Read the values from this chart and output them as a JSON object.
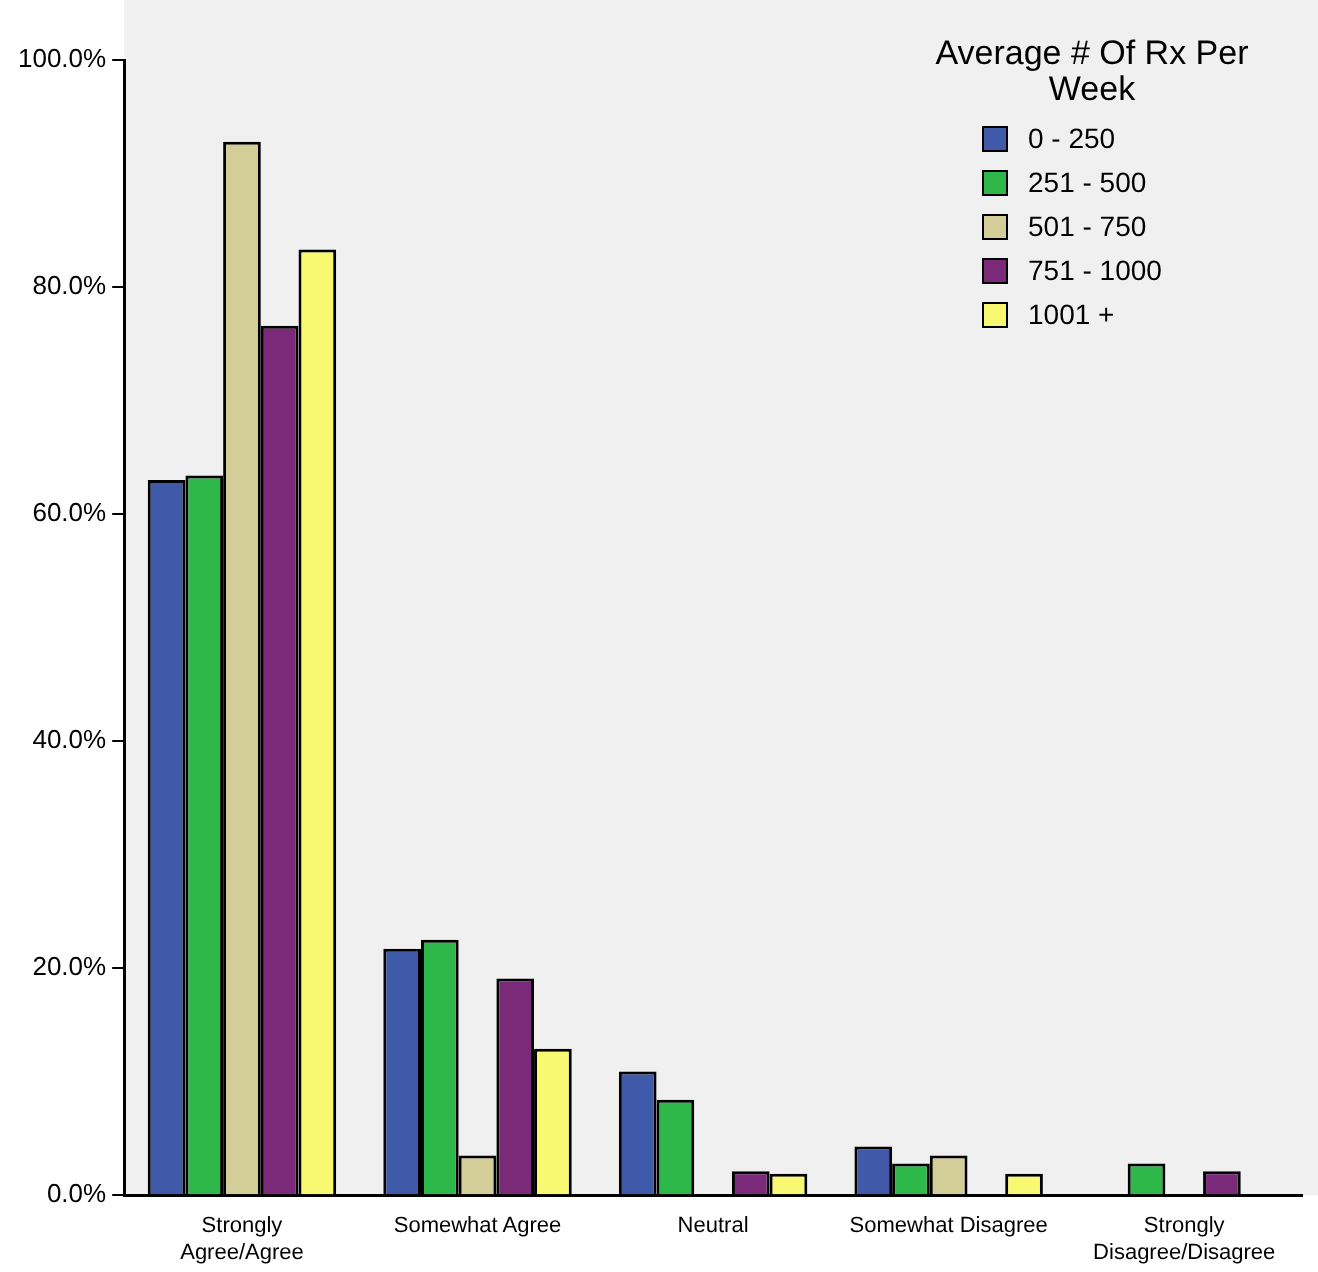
{
  "chart_data": {
    "type": "bar",
    "categories": [
      "Strongly Agree/Agree",
      "Somewhat Agree",
      "Neutral",
      "Somewhat Disagree",
      "Strongly Disagree/Disagree"
    ],
    "legend_title": "Average # Of Rx Per Week",
    "series": [
      {
        "name": "0 - 250",
        "color": "#3f5aa8",
        "values": [
          63.0,
          21.7,
          10.9,
          4.3,
          0
        ]
      },
      {
        "name": "251 - 500",
        "color": "#2eb84a",
        "values": [
          63.4,
          22.5,
          8.4,
          2.8,
          2.8
        ]
      },
      {
        "name": "501 - 750",
        "color": "#d3ce97",
        "values": [
          92.8,
          3.5,
          0,
          3.5,
          0
        ]
      },
      {
        "name": "751 - 1000",
        "color": "#7b2a7a",
        "values": [
          76.6,
          19.1,
          2.1,
          0,
          2.1
        ]
      },
      {
        "name": "1001 +",
        "color": "#f9f871",
        "values": [
          83.3,
          12.9,
          1.9,
          1.9,
          0
        ]
      }
    ],
    "ylim": [
      0,
      100
    ],
    "yticks": [
      {
        "value": 0,
        "label": "0.0%"
      },
      {
        "value": 20,
        "label": "20.0%"
      },
      {
        "value": 40,
        "label": "40.0%"
      },
      {
        "value": 60,
        "label": "60.0%"
      },
      {
        "value": 80,
        "label": "80.0%"
      },
      {
        "value": 100,
        "label": "100.0%"
      }
    ],
    "grid": false,
    "legend": "top right"
  }
}
